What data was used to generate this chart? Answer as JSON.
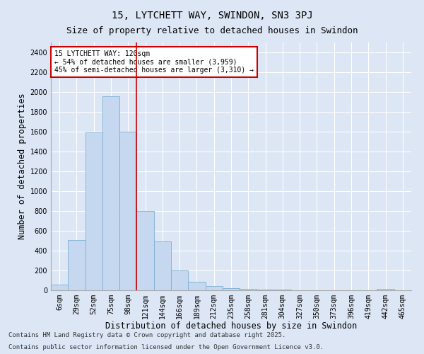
{
  "title": "15, LYTCHETT WAY, SWINDON, SN3 3PJ",
  "subtitle": "Size of property relative to detached houses in Swindon",
  "xlabel": "Distribution of detached houses by size in Swindon",
  "ylabel": "Number of detached properties",
  "categories": [
    "6sqm",
    "29sqm",
    "52sqm",
    "75sqm",
    "98sqm",
    "121sqm",
    "144sqm",
    "166sqm",
    "189sqm",
    "212sqm",
    "235sqm",
    "258sqm",
    "281sqm",
    "304sqm",
    "327sqm",
    "350sqm",
    "373sqm",
    "396sqm",
    "419sqm",
    "442sqm",
    "465sqm"
  ],
  "values": [
    55,
    510,
    1590,
    1960,
    1600,
    800,
    490,
    200,
    85,
    40,
    20,
    15,
    8,
    6,
    3,
    0,
    0,
    0,
    0,
    15,
    0
  ],
  "bar_color": "#c5d8f0",
  "bar_edge_color": "#7aafd4",
  "annotation_title": "15 LYTCHETT WAY: 120sqm",
  "annotation_line1": "← 54% of detached houses are smaller (3,959)",
  "annotation_line2": "45% of semi-detached houses are larger (3,310) →",
  "annotation_box_color": "#ffffff",
  "annotation_box_edge": "#cc0000",
  "vline_x": 4.5,
  "vline_color": "#cc0000",
  "ylim": [
    0,
    2500
  ],
  "yticks": [
    0,
    200,
    400,
    600,
    800,
    1000,
    1200,
    1400,
    1600,
    1800,
    2000,
    2200,
    2400
  ],
  "background_color": "#dce6f5",
  "plot_bg_color": "#dce6f5",
  "grid_color": "#ffffff",
  "footer_line1": "Contains HM Land Registry data © Crown copyright and database right 2025.",
  "footer_line2": "Contains public sector information licensed under the Open Government Licence v3.0.",
  "title_fontsize": 10,
  "subtitle_fontsize": 9,
  "axis_label_fontsize": 8.5,
  "tick_fontsize": 7,
  "annotation_fontsize": 7,
  "footer_fontsize": 6.5
}
